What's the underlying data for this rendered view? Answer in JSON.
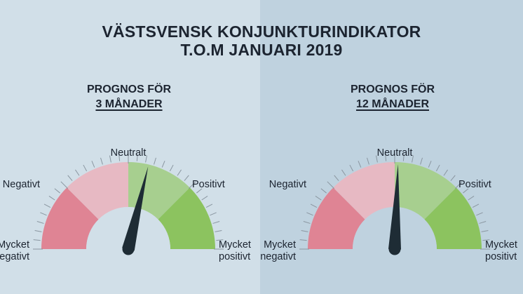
{
  "title": {
    "line1": "VÄSTSVENSK KONJUNKTURINDIKATOR",
    "line2": "T.O.M JANUARI 2019"
  },
  "chart_data": [
    {
      "type": "gauge",
      "subtitle_line1": "PROGNOS FÖR",
      "subtitle_line2": "3 MÅNADER",
      "scale": [
        "Mycket negativt",
        "Negativt",
        "Neutralt",
        "Positivt",
        "Mycket positivt"
      ],
      "labels": {
        "mycket_negativt": [
          "Mycket",
          "negativt"
        ],
        "negativt": "Negativt",
        "neutralt": "Neutralt",
        "positivt": "Positivt",
        "mycket_positivt": [
          "Mycket",
          "positivt"
        ]
      },
      "range": [
        -2,
        2
      ],
      "value": 0.3,
      "colors": [
        "#df8494",
        "#e7b9c3",
        "#a7cf8f",
        "#8cc35f"
      ]
    },
    {
      "type": "gauge",
      "subtitle_line1": "PROGNOS FÖR",
      "subtitle_line2": "12 MÅNADER",
      "scale": [
        "Mycket negativt",
        "Negativt",
        "Neutralt",
        "Positivt",
        "Mycket positivt"
      ],
      "labels": {
        "mycket_negativt": [
          "Mycket",
          "negativt"
        ],
        "negativt": "Negativt",
        "neutralt": "Neutralt",
        "positivt": "Positivt",
        "mycket_positivt": [
          "Mycket",
          "positivt"
        ]
      },
      "range": [
        -2,
        2
      ],
      "value": 0.05,
      "colors": [
        "#df8494",
        "#e7b9c3",
        "#a7cf8f",
        "#8cc35f"
      ]
    }
  ]
}
